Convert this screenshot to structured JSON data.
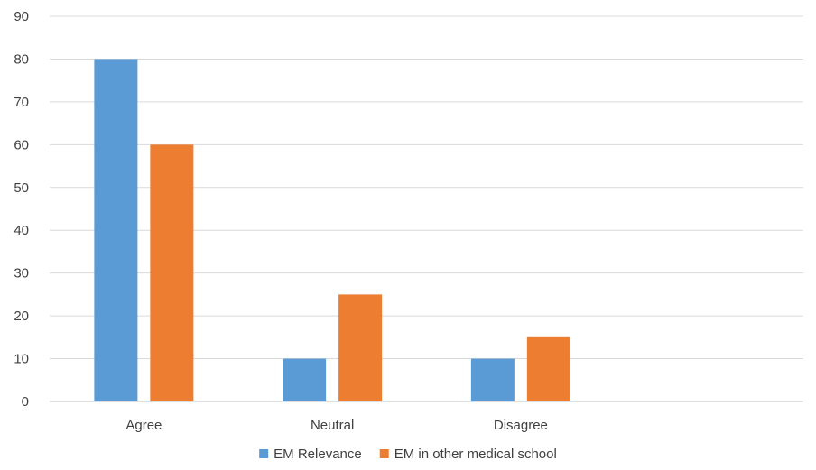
{
  "chart_data": {
    "type": "bar",
    "categories": [
      "Agree",
      "Neutral",
      "Disagree",
      ""
    ],
    "series": [
      {
        "name": "EM Relevance",
        "values": [
          80,
          10,
          10,
          null
        ],
        "color": "#5b9bd5"
      },
      {
        "name": "EM in other medical school",
        "values": [
          60,
          25,
          15,
          null
        ],
        "color": "#ed7d31"
      }
    ],
    "ylim": [
      0,
      90
    ],
    "yticks": [
      0,
      10,
      20,
      30,
      40,
      50,
      60,
      70,
      80,
      90
    ],
    "title": "",
    "xlabel": "",
    "ylabel": "",
    "grid": true,
    "legend_position": "bottom-center"
  }
}
